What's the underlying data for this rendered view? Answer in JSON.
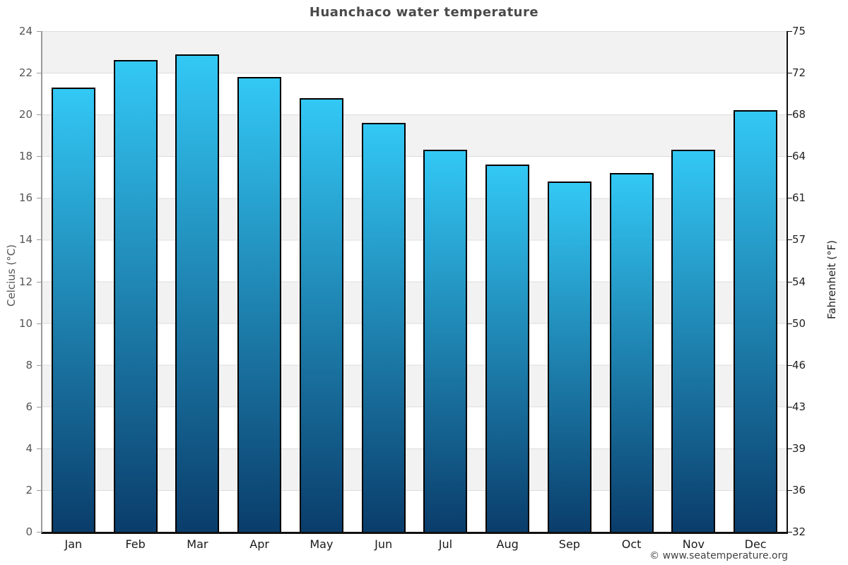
{
  "title": "Huanchaco water temperature",
  "footer": {
    "text": "© www.seatemperature.org"
  },
  "chart_data": {
    "type": "bar",
    "title": "Huanchaco water temperature",
    "categories": [
      "Jan",
      "Feb",
      "Mar",
      "Apr",
      "May",
      "Jun",
      "Jul",
      "Aug",
      "Sep",
      "Oct",
      "Nov",
      "Dec"
    ],
    "values": [
      21.3,
      22.6,
      22.9,
      21.8,
      20.8,
      19.6,
      18.3,
      17.6,
      16.8,
      17.2,
      18.3,
      20.2
    ],
    "series_name": "Water temperature (°C)",
    "xlabel": "",
    "ylabel_left": "Celcius (°C)",
    "ylabel_right": "Fahrenheit (°F)",
    "ylim": [
      0,
      24
    ],
    "celsius_ticks": [
      24,
      22,
      20,
      18,
      16,
      14,
      12,
      10,
      8,
      6,
      4,
      2,
      0
    ],
    "fahrenheit_ticks": [
      75,
      72,
      68,
      64,
      61,
      57,
      54,
      50,
      46,
      43,
      39,
      36,
      32
    ],
    "grid": "horizontal gridlines with alternating shaded bands",
    "legend_position": "none",
    "colors": {
      "bar_gradient_top": "#33c8f5",
      "bar_gradient_bottom": "#0a3d6b",
      "bar_border": "#000000",
      "band_shaded": "#f2f2f2",
      "band_plain": "#ffffff",
      "gridline": "#dddddd",
      "axis_left": "#9a9a9a",
      "axis_right": "#111111",
      "axis_bottom": "#111111",
      "title_text": "#4a4a4a",
      "tick_text_left": "#555555",
      "tick_text_right": "#222222",
      "month_text": "#1a1a1a",
      "footer_text": "#444444"
    }
  }
}
